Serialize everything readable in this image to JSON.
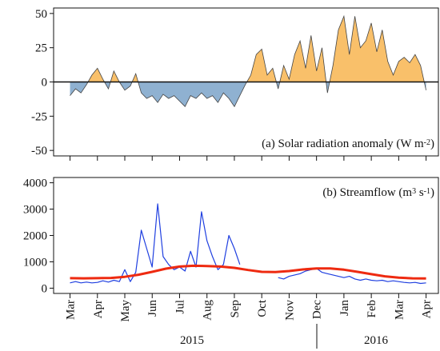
{
  "chart_data": [
    {
      "type": "area",
      "title": "(a) Solar radiation anomaly (W m",
      "title_sup": "-2",
      "title_end": ")",
      "x": [
        0,
        0.2,
        0.4,
        0.6,
        0.8,
        1,
        1.2,
        1.4,
        1.6,
        1.8,
        2,
        2.2,
        2.4,
        2.6,
        2.8,
        3,
        3.2,
        3.4,
        3.6,
        3.8,
        4,
        4.2,
        4.4,
        4.6,
        4.8,
        5,
        5.2,
        5.4,
        5.6,
        5.8,
        6,
        6.2,
        6.4,
        6.6,
        6.8,
        7,
        7.2,
        7.4,
        7.6,
        7.8,
        8,
        8.2,
        8.4,
        8.6,
        8.8,
        9,
        9.2,
        9.4,
        9.6,
        9.8,
        10,
        10.2,
        10.4,
        10.6,
        10.8,
        11,
        11.2,
        11.4,
        11.6,
        11.8,
        12,
        12.2,
        12.4,
        12.6,
        12.8,
        13
      ],
      "values": [
        -10,
        -5,
        -8,
        -2,
        5,
        10,
        2,
        -5,
        8,
        0,
        -6,
        -3,
        6,
        -8,
        -12,
        -10,
        -15,
        -9,
        -12,
        -10,
        -14,
        -18,
        -10,
        -12,
        -8,
        -12,
        -10,
        -15,
        -8,
        -12,
        -18,
        -10,
        -2,
        5,
        20,
        24,
        5,
        10,
        -5,
        12,
        2,
        20,
        30,
        10,
        34,
        8,
        25,
        -8,
        12,
        38,
        48,
        20,
        48,
        25,
        30,
        43,
        22,
        38,
        15,
        5,
        15,
        18,
        14,
        20,
        12,
        -6
      ],
      "positive_color": "#f9c06a",
      "negative_color": "#8fb1d1",
      "xlim": [
        -0.6,
        13.45
      ],
      "xticks": [
        0,
        1,
        2,
        3,
        4,
        5,
        6,
        7,
        8,
        9,
        10,
        11,
        12,
        13
      ],
      "ylim": [
        -54,
        54
      ],
      "yticks": [
        -50,
        -25,
        0,
        25,
        50
      ]
    },
    {
      "type": "line",
      "title": "(b) Streamflow (m",
      "title_sup": "3",
      "title_mid": " s",
      "title_sup2": "-1",
      "title_end": ")",
      "series": [
        {
          "color": "#1f3fe0",
          "width": 1.2,
          "x": [
            0,
            0.2,
            0.4,
            0.6,
            0.8,
            1,
            1.2,
            1.4,
            1.6,
            1.8,
            2,
            2.2,
            2.4,
            2.6,
            2.8,
            3,
            3.2,
            3.4,
            3.6,
            3.8,
            4,
            4.2,
            4.4,
            4.6,
            4.8,
            5,
            5.2,
            5.4,
            5.6,
            5.8,
            6,
            6.2,
            6.4,
            6.6,
            6.8,
            7,
            7.2,
            7.4,
            7.6,
            7.8,
            8,
            8.2,
            8.4,
            8.6,
            8.8,
            9,
            9.2,
            9.4,
            9.6,
            9.8,
            10,
            10.2,
            10.4,
            10.6,
            10.8,
            11,
            11.2,
            11.4,
            11.6,
            11.8,
            12,
            12.2,
            12.4,
            12.6,
            12.8,
            13
          ],
          "values": [
            200,
            250,
            200,
            230,
            200,
            220,
            280,
            230,
            300,
            250,
            700,
            250,
            600,
            2200,
            1500,
            800,
            3200,
            1200,
            900,
            700,
            800,
            650,
            1400,
            800,
            2900,
            1800,
            1200,
            700,
            900,
            2000,
            1500,
            900,
            null,
            null,
            null,
            null,
            null,
            null,
            400,
            350,
            450,
            500,
            550,
            650,
            700,
            750,
            600,
            550,
            500,
            450,
            400,
            450,
            350,
            300,
            350,
            300,
            280,
            300,
            250,
            280,
            250,
            220,
            200,
            220,
            180,
            200
          ]
        },
        {
          "color": "#ee2a10",
          "width": 3,
          "x": [
            0,
            0.5,
            1,
            1.5,
            2,
            2.5,
            3,
            3.5,
            4,
            4.5,
            5,
            5.5,
            6,
            6.5,
            7,
            7.5,
            8,
            8.5,
            9,
            9.5,
            10,
            10.5,
            11,
            11.5,
            12,
            12.5,
            13
          ],
          "values": [
            380,
            375,
            380,
            390,
            430,
            510,
            620,
            740,
            820,
            850,
            840,
            820,
            770,
            690,
            620,
            610,
            650,
            710,
            750,
            750,
            700,
            620,
            530,
            450,
            400,
            375,
            370
          ]
        }
      ],
      "xlim": [
        -0.6,
        13.45
      ],
      "xticks": [
        {
          "value": 0,
          "label": "Mar"
        },
        {
          "value": 1,
          "label": "Apr"
        },
        {
          "value": 2,
          "label": "May"
        },
        {
          "value": 3,
          "label": "Jun"
        },
        {
          "value": 4,
          "label": "Jul"
        },
        {
          "value": 5,
          "label": "Aug"
        },
        {
          "value": 6,
          "label": "Sep"
        },
        {
          "value": 7,
          "label": "Oct"
        },
        {
          "value": 8,
          "label": "Nov"
        },
        {
          "value": 9,
          "label": "Dec"
        },
        {
          "value": 10,
          "label": "Jan"
        },
        {
          "value": 11,
          "label": "Feb"
        },
        {
          "value": 12,
          "label": "Mar"
        },
        {
          "value": 13,
          "label": "Apr"
        }
      ],
      "years": [
        "2015",
        "2016"
      ],
      "ylim": [
        -200,
        4200
      ],
      "yticks": [
        0,
        1000,
        2000,
        3000,
        4000
      ]
    }
  ]
}
